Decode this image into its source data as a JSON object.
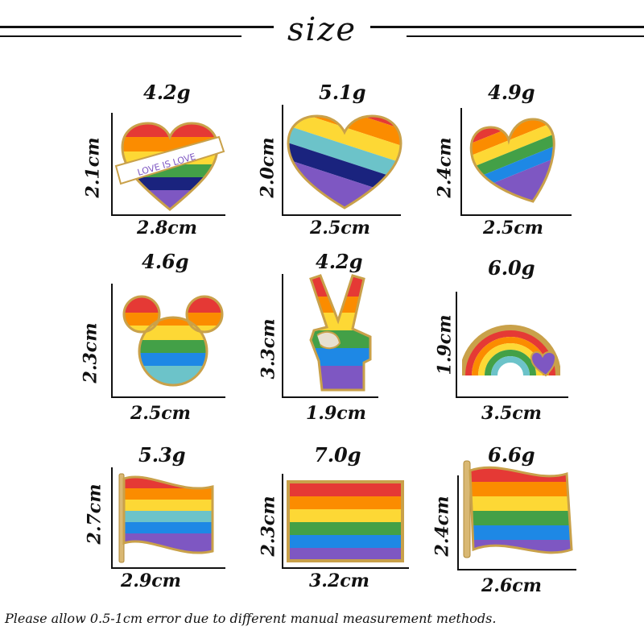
{
  "header": {
    "title": "size"
  },
  "colors": {
    "red": "#e53935",
    "orange": "#fb8c00",
    "yellow": "#fdd835",
    "green": "#43a047",
    "teal": "#6cc3c9",
    "blue": "#1e88e5",
    "navy": "#1a237e",
    "purple": "#7e57c2",
    "gold": "#c9a14a"
  },
  "items": [
    {
      "weight": "4.2g",
      "height": "2.1cm",
      "width": "2.8cm",
      "icon": "heart-love-is-love-icon",
      "banner": "LOVE IS LOVE"
    },
    {
      "weight": "5.1g",
      "height": "2.0cm",
      "width": "2.5cm",
      "icon": "heart-stripes-icon"
    },
    {
      "weight": "4.9g",
      "height": "2.4cm",
      "width": "2.5cm",
      "icon": "heart-tilted-icon"
    },
    {
      "weight": "4.6g",
      "height": "2.3cm",
      "width": "2.5cm",
      "icon": "mouse-ears-icon"
    },
    {
      "weight": "4.2g",
      "height": "3.3cm",
      "width": "1.9cm",
      "icon": "peace-hand-icon"
    },
    {
      "weight": "6.0g",
      "height": "1.9cm",
      "width": "3.5cm",
      "icon": "rainbow-heart-icon"
    },
    {
      "weight": "5.3g",
      "height": "2.7cm",
      "width": "2.9cm",
      "icon": "waving-flag-icon"
    },
    {
      "weight": "7.0g",
      "height": "2.3cm",
      "width": "3.2cm",
      "icon": "rectangle-flag-icon"
    },
    {
      "weight": "6.6g",
      "height": "2.4cm",
      "width": "2.6cm",
      "icon": "waving-flag-pole-icon"
    }
  ],
  "footer": {
    "note": "Please allow 0.5-1cm error due to different manual measurement methods."
  }
}
